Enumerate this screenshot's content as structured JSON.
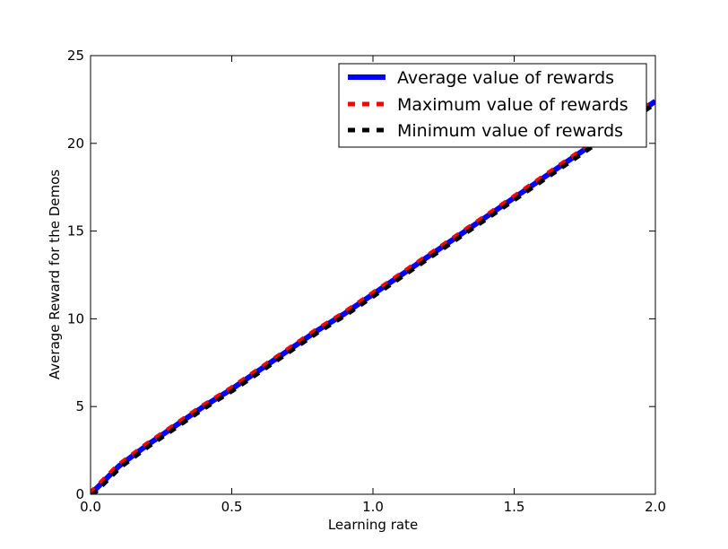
{
  "chart_data": {
    "type": "line",
    "title": "",
    "xlabel": "Learning rate",
    "ylabel": "Average Reward for the Demos",
    "xlim": [
      0,
      2
    ],
    "ylim": [
      0,
      25
    ],
    "xticks": [
      0,
      0.5,
      1,
      1.5,
      2
    ],
    "yticks": [
      0,
      5,
      10,
      15,
      20,
      25
    ],
    "xtick_labels": [
      "0.0",
      "0.5",
      "1.0",
      "1.5",
      "2.0"
    ],
    "ytick_labels": [
      "0",
      "5",
      "10",
      "15",
      "20",
      "25"
    ],
    "grid": false,
    "legend_position": "top-right",
    "x": [
      0,
      0.05,
      0.1,
      0.2,
      0.3,
      0.4,
      0.5,
      0.6,
      0.7,
      0.8,
      0.9,
      1.0,
      1.1,
      1.2,
      1.3,
      1.4,
      1.5,
      1.6,
      1.7,
      1.8,
      1.9,
      2.0
    ],
    "series": [
      {
        "name": "Average value of rewards",
        "color": "#0000ff",
        "style": "solid",
        "values": [
          0,
          0.8,
          1.6,
          2.8,
          3.9,
          5.0,
          6.0,
          7.1,
          8.2,
          9.3,
          10.3,
          11.4,
          12.5,
          13.6,
          14.7,
          15.8,
          16.9,
          18.0,
          19.1,
          20.2,
          21.3,
          22.4
        ]
      },
      {
        "name": "Maximum value of rewards",
        "color": "#ff0000",
        "style": "dashed",
        "values": [
          0,
          0.8,
          1.6,
          2.8,
          3.9,
          5.0,
          6.0,
          7.1,
          8.2,
          9.3,
          10.3,
          11.4,
          12.5,
          13.6,
          14.7,
          15.8,
          16.9,
          18.0,
          19.1,
          20.2,
          21.3,
          22.4
        ]
      },
      {
        "name": "Minimum value of rewards",
        "color": "#000000",
        "style": "dashed",
        "values": [
          0,
          0.8,
          1.6,
          2.8,
          3.9,
          5.0,
          6.0,
          7.1,
          8.2,
          9.3,
          10.3,
          11.4,
          12.5,
          13.6,
          14.7,
          15.8,
          16.9,
          18.0,
          19.1,
          20.2,
          21.3,
          22.4
        ]
      }
    ]
  }
}
